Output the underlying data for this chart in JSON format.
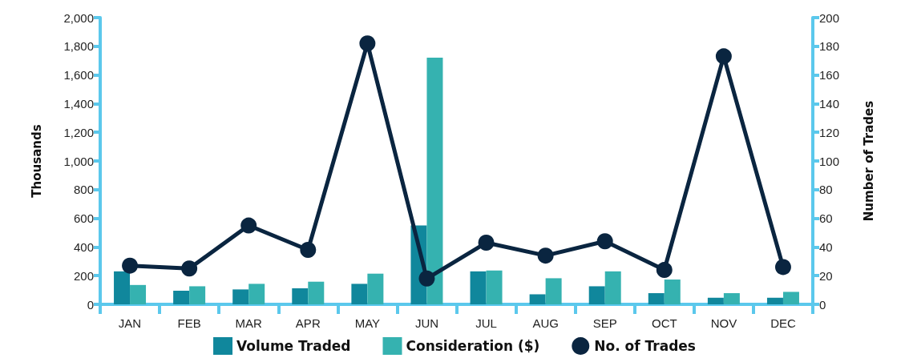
{
  "chart_data": {
    "type": "bar",
    "ylabel": "Thousands",
    "y2label": "Number of Trades",
    "categories": [
      "JAN",
      "FEB",
      "MAR",
      "APR",
      "MAY",
      "JUN",
      "JUL",
      "AUG",
      "SEP",
      "OCT",
      "NOV",
      "DEC"
    ],
    "series": [
      {
        "name": "Volume Traded",
        "color": "#10879c",
        "values": [
          230,
          95,
          104,
          112,
          143,
          550,
          230,
          70,
          126,
          78,
          46,
          46
        ]
      },
      {
        "name": "Consideration ($)",
        "color": "#35b2b0",
        "values": [
          135,
          126,
          143,
          158,
          214,
          1720,
          236,
          182,
          230,
          173,
          78,
          87
        ]
      },
      {
        "name": "No. of Trades",
        "type": "line",
        "axis": "y2",
        "color": "#0a2540",
        "marker": "circle",
        "values": [
          27,
          25,
          55,
          38,
          182,
          18,
          43,
          34,
          44,
          24,
          173,
          26
        ]
      }
    ],
    "ylim": [
      0,
      2000
    ],
    "yticks": [
      0,
      200,
      400,
      600,
      800,
      {
        "value": 1000,
        "label": "1,000"
      },
      {
        "value": 1200,
        "label": "1,200"
      },
      {
        "value": 1400,
        "label": "1,400"
      },
      {
        "value": 1600,
        "label": "1,600"
      },
      {
        "value": 1800,
        "label": "1,800"
      },
      {
        "value": 2000,
        "label": "2,000"
      }
    ],
    "y2lim": [
      0,
      200
    ],
    "y2ticks": [
      0,
      20,
      40,
      60,
      80,
      100,
      120,
      140,
      160,
      180,
      200
    ],
    "grid": false,
    "legend": "bottom"
  }
}
